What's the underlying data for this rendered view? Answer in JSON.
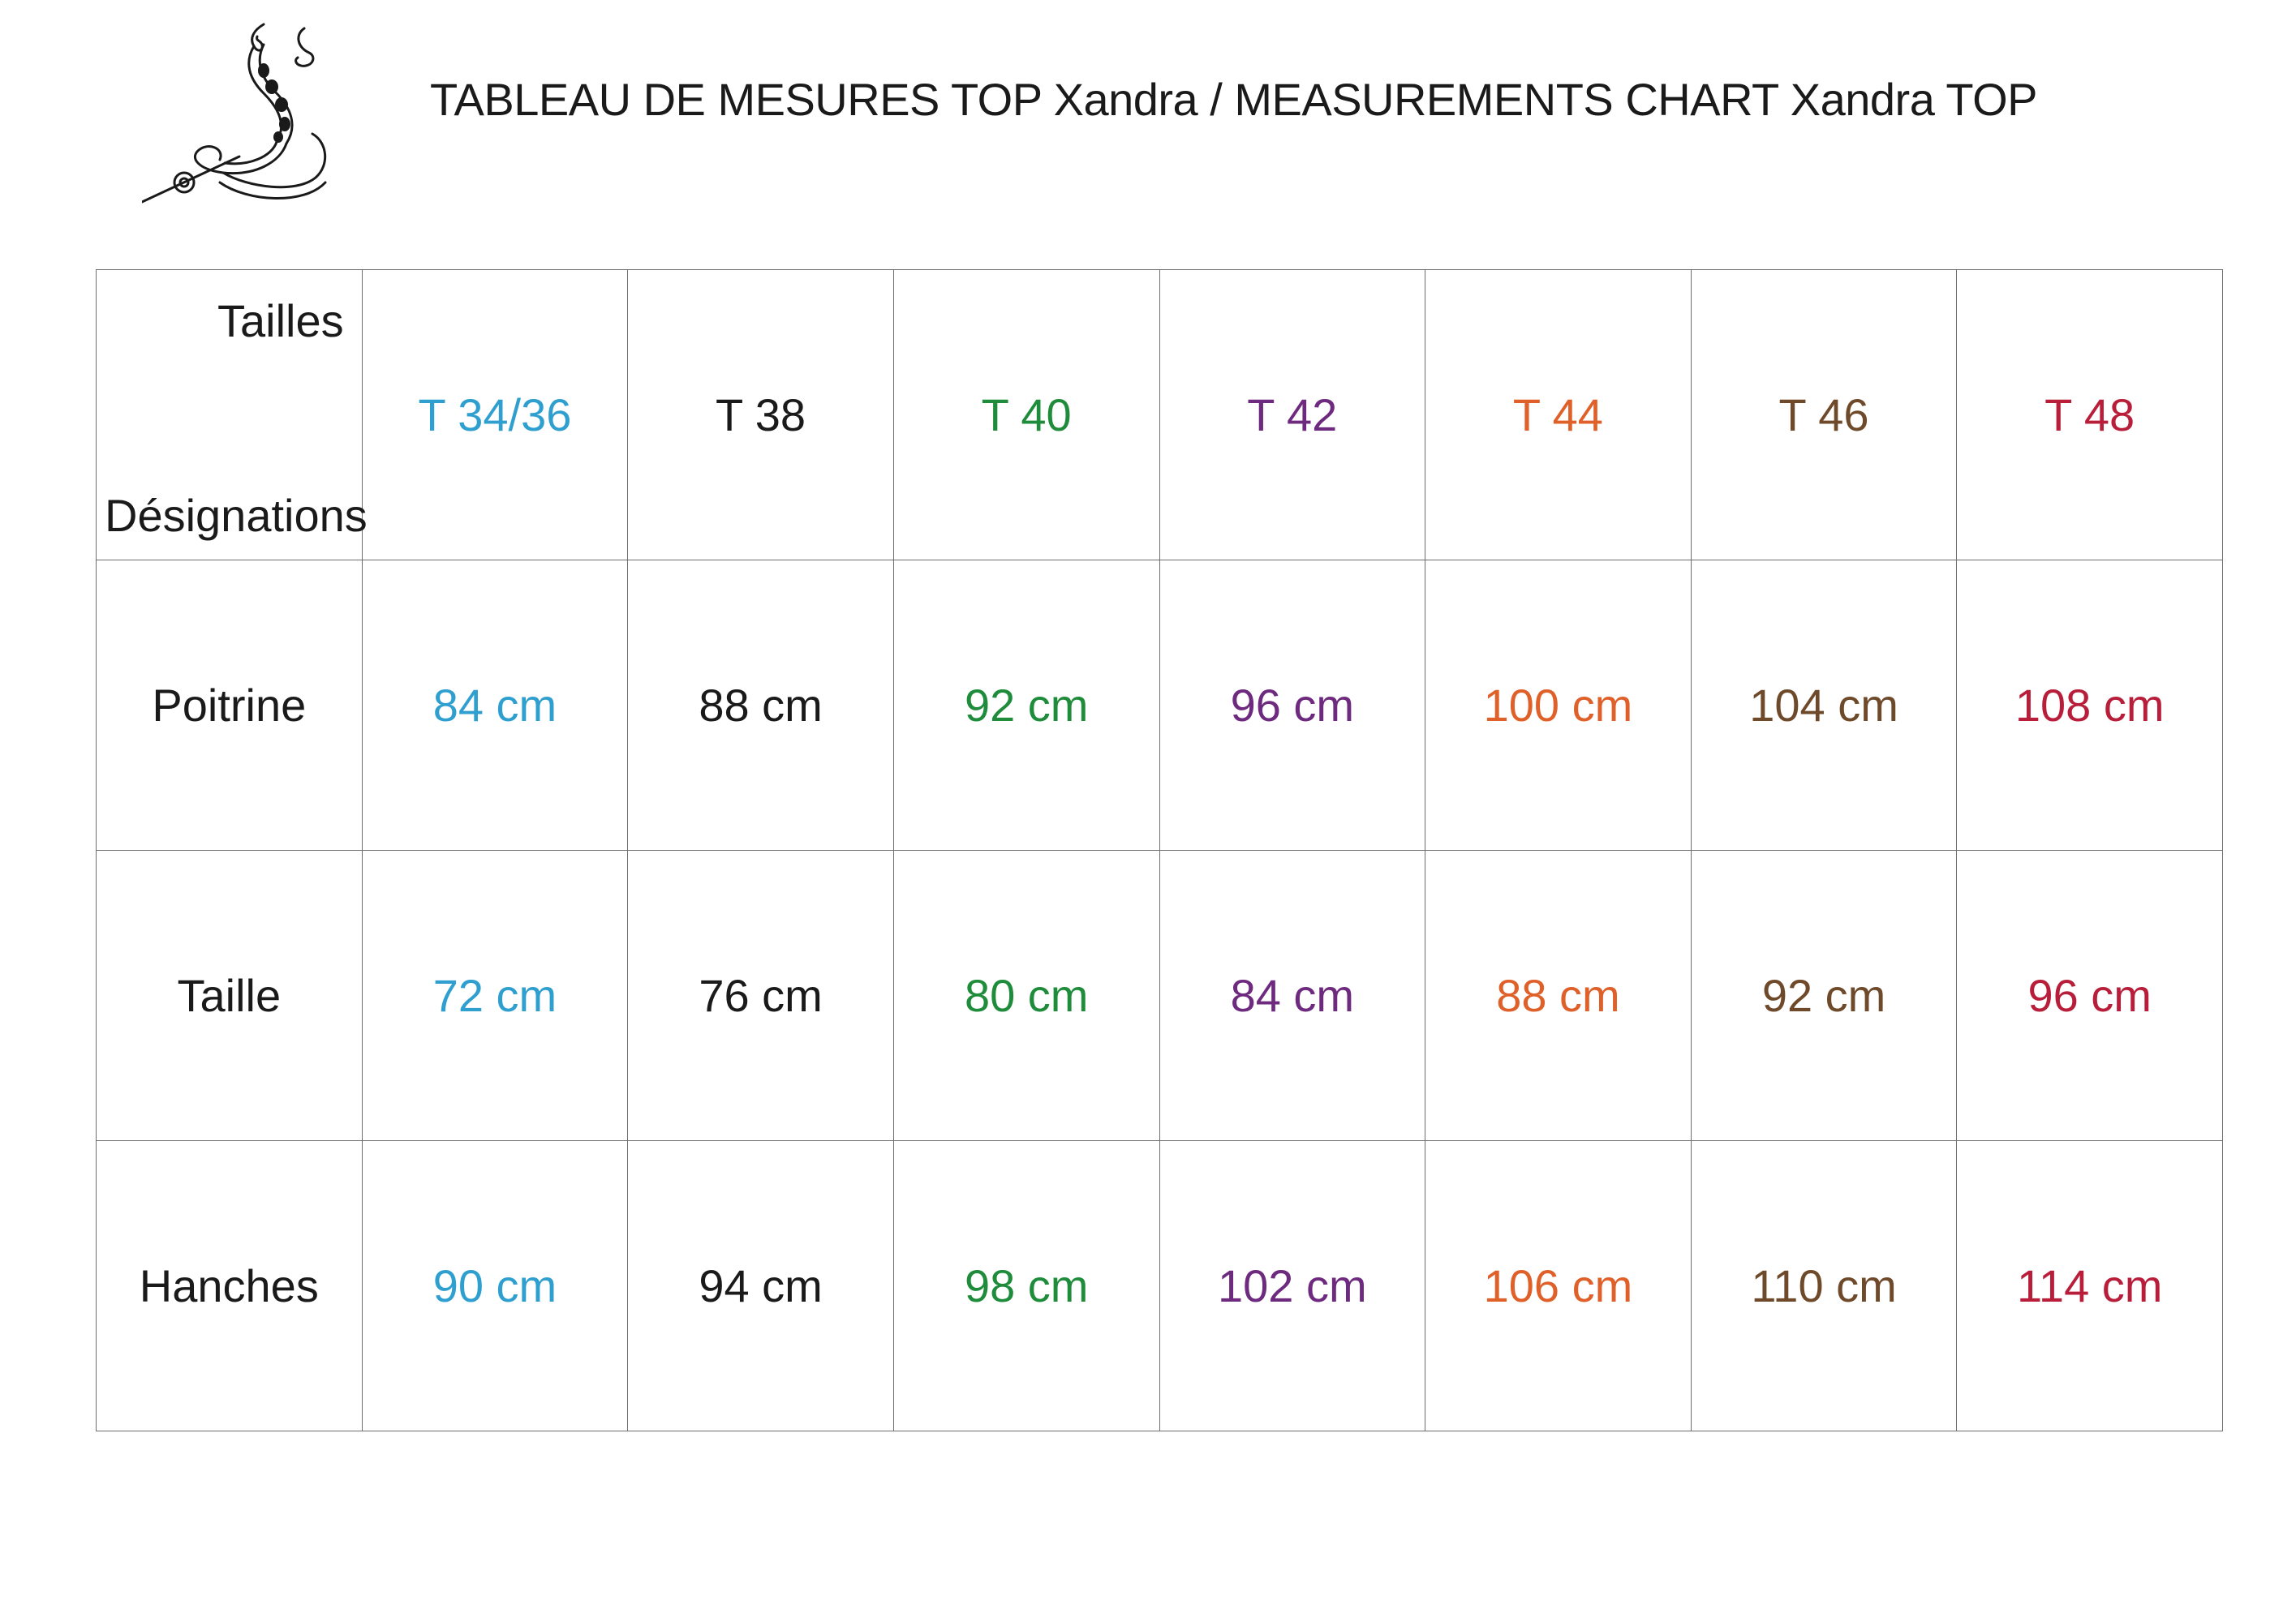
{
  "title": "TABLEAU DE MESURES TOP Xandra / MEASUREMENTS CHART Xandra TOP",
  "logo": {
    "icon": "serpent-s-logo-icon"
  },
  "table": {
    "corner_top": "Tailles",
    "corner_bottom": "Désignations",
    "sizes": [
      {
        "label": "T 34/36",
        "color": "#2f9fd0"
      },
      {
        "label": "T 38",
        "color": "#1a1a1a"
      },
      {
        "label": "T 40",
        "color": "#1e8c3a"
      },
      {
        "label": "T 42",
        "color": "#6e2a7e"
      },
      {
        "label": "T 44",
        "color": "#e0602a"
      },
      {
        "label": "T 46",
        "color": "#6e4a2a"
      },
      {
        "label": "T 48",
        "color": "#b81e3a"
      }
    ],
    "rows": [
      {
        "label": "Poitrine",
        "values": [
          "84 cm",
          "88 cm",
          "92 cm",
          "96 cm",
          "100 cm",
          "104 cm",
          "108 cm"
        ]
      },
      {
        "label": "Taille",
        "values": [
          "72 cm",
          "76 cm",
          "80 cm",
          "84 cm",
          "88 cm",
          "92 cm",
          "96 cm"
        ]
      },
      {
        "label": "Hanches",
        "values": [
          "90 cm",
          "94 cm",
          "98 cm",
          "102 cm",
          "106 cm",
          "110 cm",
          "114 cm"
        ]
      }
    ]
  }
}
